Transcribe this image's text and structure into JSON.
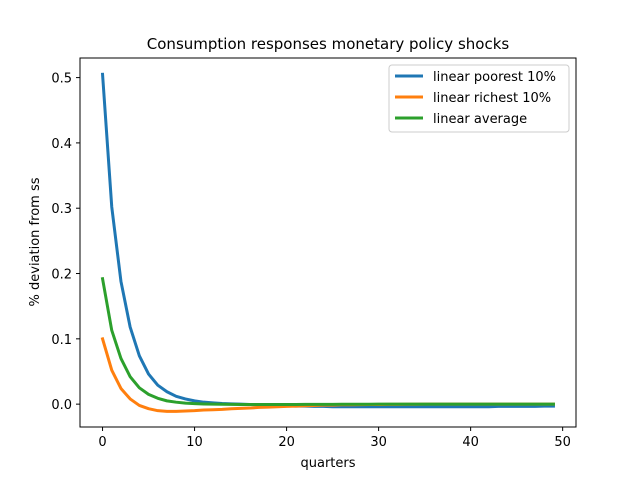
{
  "chart_data": {
    "type": "line",
    "title": "Consumption responses monetary policy shocks",
    "xlabel": "quarters",
    "ylabel": "% deviation from ss",
    "xlim": [
      -2.45,
      51.45
    ],
    "ylim": [
      -0.035,
      0.53
    ],
    "xticks": [
      0,
      10,
      20,
      30,
      40,
      50
    ],
    "yticks": [
      0.0,
      0.1,
      0.2,
      0.3,
      0.4,
      0.5
    ],
    "xtick_labels": [
      "0",
      "10",
      "20",
      "30",
      "40",
      "50"
    ],
    "ytick_labels": [
      "0.0",
      "0.1",
      "0.2",
      "0.3",
      "0.4",
      "0.5"
    ],
    "grid": false,
    "legend_position": "top-right",
    "x": [
      0,
      1,
      2,
      3,
      4,
      5,
      6,
      7,
      8,
      9,
      10,
      11,
      12,
      13,
      14,
      15,
      16,
      17,
      18,
      19,
      20,
      21,
      22,
      23,
      24,
      25,
      26,
      27,
      28,
      29,
      30,
      31,
      32,
      33,
      34,
      35,
      36,
      37,
      38,
      39,
      40,
      41,
      42,
      43,
      44,
      45,
      46,
      47,
      48,
      49
    ],
    "series": [
      {
        "name": "linear poorest 10%",
        "color": "#1f77b4",
        "values": [
          0.505,
          0.302,
          0.188,
          0.118,
          0.074,
          0.046,
          0.029,
          0.019,
          0.012,
          0.008,
          0.005,
          0.003,
          0.002,
          0.001,
          0.0005,
          0.0,
          -0.0005,
          -0.001,
          -0.0015,
          -0.002,
          -0.0025,
          -0.003,
          -0.003,
          -0.0035,
          -0.0035,
          -0.004,
          -0.004,
          -0.004,
          -0.004,
          -0.004,
          -0.004,
          -0.004,
          -0.004,
          -0.004,
          -0.004,
          -0.004,
          -0.004,
          -0.004,
          -0.004,
          -0.004,
          -0.004,
          -0.004,
          -0.004,
          -0.0035,
          -0.0035,
          -0.0035,
          -0.0035,
          -0.0035,
          -0.003,
          -0.003
        ]
      },
      {
        "name": "linear richest 10%",
        "color": "#ff7f0e",
        "values": [
          0.1,
          0.052,
          0.024,
          0.008,
          -0.002,
          -0.007,
          -0.01,
          -0.011,
          -0.011,
          -0.0105,
          -0.01,
          -0.009,
          -0.0085,
          -0.008,
          -0.007,
          -0.0065,
          -0.006,
          -0.005,
          -0.0045,
          -0.004,
          -0.0035,
          -0.003,
          -0.0025,
          -0.002,
          -0.0015,
          -0.0015,
          -0.001,
          -0.001,
          -0.0008,
          -0.0006,
          -0.0005,
          -0.0004,
          -0.0003,
          -0.0002,
          -0.0001,
          0.0,
          0.0,
          0.0,
          0.0,
          0.0,
          0.0,
          0.0,
          0.0,
          0.0,
          0.0,
          0.0,
          0.0,
          0.0,
          0.0,
          0.0
        ]
      },
      {
        "name": "linear average",
        "color": "#2ca02c",
        "values": [
          0.192,
          0.113,
          0.07,
          0.042,
          0.025,
          0.015,
          0.009,
          0.005,
          0.003,
          0.0015,
          0.0008,
          0.0003,
          0.0,
          -0.0002,
          -0.0004,
          -0.0005,
          -0.0006,
          -0.0006,
          -0.0006,
          -0.0006,
          -0.0005,
          -0.0005,
          -0.0004,
          -0.0004,
          -0.0003,
          -0.0003,
          -0.0002,
          -0.0002,
          -0.0001,
          -0.0001,
          0.0,
          0.0,
          0.0,
          0.0,
          0.0,
          0.0,
          0.0,
          0.0,
          0.0,
          0.0,
          0.0,
          0.0,
          0.0,
          0.0,
          0.0,
          0.0,
          0.0,
          0.0,
          0.0,
          0.0
        ]
      }
    ]
  }
}
